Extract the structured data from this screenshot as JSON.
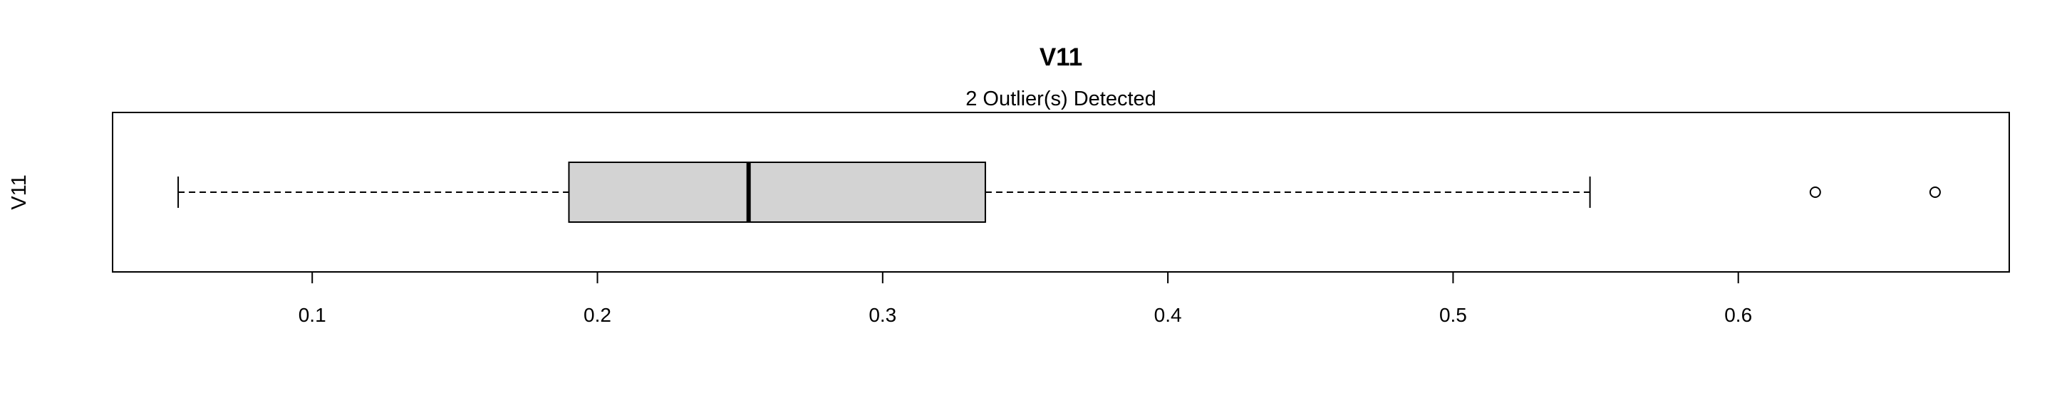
{
  "chart_data": {
    "type": "boxplot",
    "orientation": "horizontal",
    "title": "V11",
    "subtitle": "2 Outlier(s) Detected",
    "ylabel": "V11",
    "xlabel": "",
    "xlim": [
      0.03,
      0.695
    ],
    "x_ticks": [
      0.1,
      0.2,
      0.3,
      0.4,
      0.5,
      0.6
    ],
    "x_tick_labels": [
      "0.1",
      "0.2",
      "0.3",
      "0.4",
      "0.5",
      "0.6"
    ],
    "box": {
      "whisker_low": 0.053,
      "q1": 0.19,
      "median": 0.253,
      "q3": 0.336,
      "whisker_high": 0.548
    },
    "outliers": [
      0.627,
      0.669
    ],
    "box_fill": "#d3d3d3",
    "grid": false
  }
}
